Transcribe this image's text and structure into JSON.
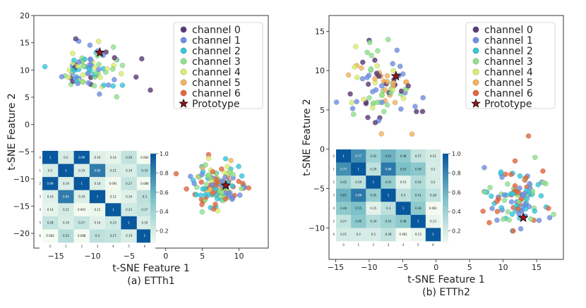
{
  "colors": {
    "channel_colors": [
      "#5b3a78",
      "#6f8fe6",
      "#35c7dd",
      "#8ee38a",
      "#d9ee6c",
      "#f6b25c",
      "#e4683e"
    ],
    "prototype_fill": "#a01018",
    "heatmap_low": "#f5fbf1",
    "heatmap_mid": "#7fc3c8",
    "heatmap_high": "#08589e"
  },
  "chart_data": [
    {
      "type": "scatter",
      "panel": "ETTh1",
      "caption": "(a) ETTh1",
      "xlabel": "t-SNE Feature 1",
      "ylabel": "t-SNE Feature 2",
      "xlim": [
        -18,
        14
      ],
      "ylim": [
        -22.7,
        20
      ],
      "xticks": [
        "−15",
        "−10",
        "−5",
        "0",
        "5",
        "10"
      ],
      "xtick_values": [
        -15,
        -10,
        -5,
        0,
        5,
        10
      ],
      "yticks": [
        "20",
        "15",
        "10",
        "5",
        "0",
        "−5",
        "−10",
        "−15",
        "−20"
      ],
      "ytick_values": [
        20,
        15,
        10,
        5,
        0,
        -5,
        -10,
        -15,
        -20
      ],
      "legend": [
        "channel 0",
        "channel 1",
        "channel 2",
        "channel 3",
        "channel 4",
        "channel 5",
        "channel 6",
        "Prototype"
      ],
      "legend_position": "top-right",
      "prototypes": [
        [
          -9,
          13.2
        ],
        [
          8.2,
          -11.2
        ]
      ],
      "clusters": [
        {
          "name": "upper-left cluster",
          "center": [
            -10.5,
            10.5
          ],
          "spread": [
            4.3,
            4
          ],
          "channels": [
            0,
            1,
            2,
            3,
            4
          ],
          "count": 95
        },
        {
          "name": "lower-right cluster",
          "center": [
            7,
            -11
          ],
          "spread": [
            3.6,
            4
          ],
          "channels": [
            1,
            2,
            3,
            4,
            5,
            6
          ],
          "count": 135
        }
      ],
      "heatmap": {
        "labels": [
          "0",
          "1",
          "2",
          "3",
          "4",
          "5",
          "6"
        ],
        "values": [
          [
            "1",
            "0.2",
            "0.99",
            "0.16",
            "0.14",
            "0.28",
            "0.082"
          ],
          [
            "0.2",
            "1",
            "0.19",
            "0.85",
            "0.21",
            "0.19",
            "0.33"
          ],
          [
            "0.99",
            "0.19",
            "1",
            "0.18",
            "0.091",
            "0.27",
            "0.088"
          ],
          [
            "0.16",
            "0.85",
            "0.18",
            "1",
            "0.12",
            "0.16",
            "0.3"
          ],
          [
            "0.14",
            "0.21",
            "0.091",
            "0.12",
            "1",
            "0.23",
            "0.27"
          ],
          [
            "0.28",
            "0.19",
            "0.27",
            "0.16",
            "0.23",
            "1",
            "0.19"
          ],
          [
            "0.082",
            "0.33",
            "0.088",
            "0.3",
            "0.27",
            "0.19",
            "1"
          ]
        ],
        "colorbar_ticks": [
          "1.0",
          "0.8",
          "0.6",
          "0.4",
          "0.2"
        ],
        "colorbar_values": [
          1.0,
          0.8,
          0.6,
          0.4,
          0.2
        ]
      }
    },
    {
      "type": "scatter",
      "panel": "ETTh2",
      "caption": "(b) ETTh2",
      "xlabel": "t-SNE Feature 1",
      "ylabel": "t-SNE Feature 2",
      "xlim": [
        -16,
        19
      ],
      "ylim": [
        -14,
        17
      ],
      "xticks": [
        "−15",
        "−10",
        "−5",
        "0",
        "5",
        "10",
        "15"
      ],
      "xtick_values": [
        -15,
        -10,
        -5,
        0,
        5,
        10,
        15
      ],
      "yticks": [
        "15",
        "10",
        "5",
        "0",
        "−5",
        "−10"
      ],
      "ytick_values": [
        15,
        10,
        5,
        0,
        -5,
        -10
      ],
      "legend": [
        "channel 0",
        "channel 1",
        "channel 2",
        "channel 3",
        "channel 4",
        "channel 5",
        "channel 6",
        "Prototype"
      ],
      "legend_position": "top-right",
      "prototypes": [
        [
          -6,
          9.3
        ],
        [
          13,
          -8.7
        ]
      ],
      "clusters": [
        {
          "name": "upper-left cluster",
          "center": [
            -8.5,
            8
          ],
          "spread": [
            4.5,
            4.5
          ],
          "channels": [
            0,
            1,
            3,
            4,
            5
          ],
          "count": 100
        },
        {
          "name": "lower-right cluster",
          "center": [
            12,
            -6.5
          ],
          "spread": [
            4,
            3.5
          ],
          "channels": [
            1,
            2,
            3,
            6
          ],
          "count": 110
        }
      ],
      "heatmap": {
        "labels": [
          "0",
          "1",
          "2",
          "3",
          "4",
          "5",
          "6"
        ],
        "values": [
          [
            "1",
            "0.77",
            "0.42",
            "0.61",
            "0.48",
            "0.27",
            "0.21"
          ],
          [
            "0.77",
            "1",
            "0.29",
            "0.86",
            "0.55",
            "0.49",
            "0.2"
          ],
          [
            "0.42",
            "0.29",
            "1",
            "0.45",
            "0.15",
            "0.34",
            "0.2"
          ],
          [
            "0.61",
            "0.86",
            "0.45",
            "1",
            "0.3",
            "0.41",
            "0.28"
          ],
          [
            "0.48",
            "0.55",
            "0.15",
            "0.3",
            "1",
            "0.48",
            "0.081"
          ],
          [
            "0.27",
            "0.49",
            "0.34",
            "0.41",
            "0.48",
            "1",
            "0.13"
          ],
          [
            "0.21",
            "0.2",
            "0.2",
            "0.28",
            "0.081",
            "0.13",
            "1"
          ]
        ],
        "colorbar_ticks": [
          "1.0",
          "0.8",
          "0.6",
          "0.4",
          "0.2"
        ],
        "colorbar_values": [
          1.0,
          0.8,
          0.6,
          0.4,
          0.2
        ]
      }
    }
  ]
}
